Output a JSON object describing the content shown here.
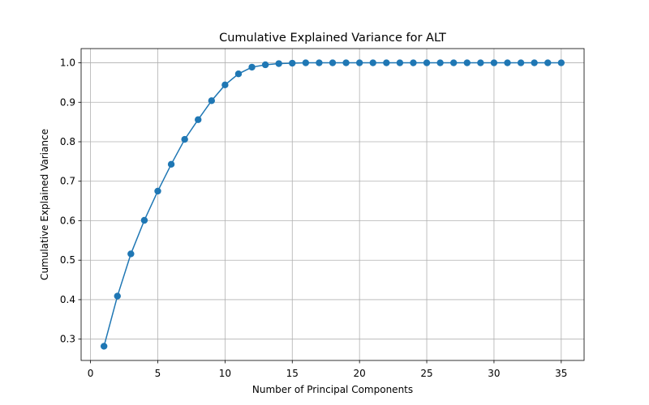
{
  "chart_data": {
    "type": "line",
    "title": "Cumulative Explained Variance for ALT",
    "xlabel": "Number of Principal Components",
    "ylabel": "Cumulative Explained Variance",
    "xlim": [
      -0.7,
      36.7
    ],
    "ylim": [
      0.246,
      1.036
    ],
    "xticks": [
      0,
      5,
      10,
      15,
      20,
      25,
      30,
      35
    ],
    "yticks": [
      0.3,
      0.4,
      0.5,
      0.6,
      0.7,
      0.8,
      0.9,
      1.0
    ],
    "ytick_labels": [
      "0.3",
      "0.4",
      "0.5",
      "0.6",
      "0.7",
      "0.8",
      "0.9",
      "1.0"
    ],
    "grid": true,
    "marker": "circle",
    "color": "#1f77b4",
    "series": [
      {
        "x": [
          1,
          2,
          3,
          4,
          5,
          6,
          7,
          8,
          9,
          10,
          11,
          12,
          13,
          14,
          15,
          16,
          17,
          18,
          19,
          20,
          21,
          22,
          23,
          24,
          25,
          26,
          27,
          28,
          29,
          30,
          31,
          32,
          33,
          34,
          35
        ],
        "values": [
          0.282,
          0.409,
          0.516,
          0.601,
          0.675,
          0.743,
          0.806,
          0.856,
          0.904,
          0.944,
          0.972,
          0.989,
          0.995,
          0.998,
          0.999,
          1.0,
          1.0,
          1.0,
          1.0,
          1.0,
          1.0,
          1.0,
          1.0,
          1.0,
          1.0,
          1.0,
          1.0,
          1.0,
          1.0,
          1.0,
          1.0,
          1.0,
          1.0,
          1.0,
          1.0
        ]
      }
    ]
  }
}
